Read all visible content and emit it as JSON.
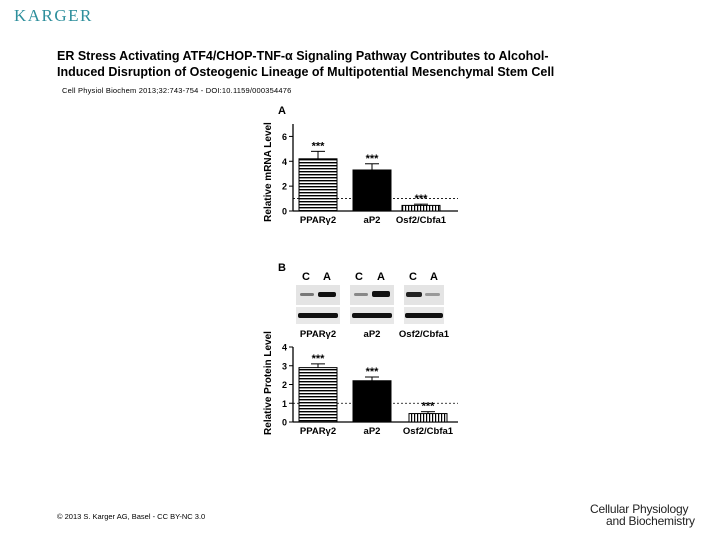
{
  "header": {
    "publisher_logo": "KARGER",
    "title_line1": "ER Stress Activating ATF4/CHOP-TNF-α Signaling Pathway Contributes to Alcohol-",
    "title_line2": "Induced Disruption of Osteogenic Lineage of Multipotential Mesenchymal Stem Cell",
    "citation": "Cell Physiol Biochem 2013;32:743-754 - DOI:10.1159/000354476"
  },
  "footer": {
    "copyright": "© 2013 S. Karger AG, Basel - CC BY-NC 3.0",
    "journal_line1": "Cellular Physiology",
    "journal_line2": "and Biochemistry"
  },
  "panel_a": {
    "letter": "A",
    "ylabel": "Relative mRNA Level",
    "sig": "***"
  },
  "panel_b": {
    "letter": "B",
    "ylabel": "Relative Protein Level",
    "sig": "***",
    "blot_labels": [
      "C",
      "A"
    ],
    "blot_names": [
      "PPARγ2",
      "aP2",
      "Osf2/Cbfa1"
    ]
  },
  "chart_data": [
    {
      "type": "bar",
      "panel": "A",
      "categories": [
        "PPARγ2",
        "aP2",
        "Osf2/Cbfa1"
      ],
      "values": [
        4.2,
        3.3,
        0.45
      ],
      "errors": [
        0.6,
        0.5,
        0.1
      ],
      "significance": [
        "***",
        "***",
        "***"
      ],
      "ylabel": "Relative mRNA Level",
      "ylim": [
        0,
        7
      ],
      "yticks": [
        0,
        2,
        4,
        6
      ],
      "reference_line": 1,
      "bar_fills": [
        "horizontal-stripes",
        "solid-black",
        "vertical-stripes"
      ]
    },
    {
      "type": "bar",
      "panel": "B",
      "categories": [
        "PPARγ2",
        "aP2",
        "Osf2/Cbfa1"
      ],
      "values": [
        2.9,
        2.2,
        0.45
      ],
      "errors": [
        0.2,
        0.2,
        0.1
      ],
      "significance": [
        "***",
        "***",
        "***"
      ],
      "ylabel": "Relative Protein Level",
      "ylim": [
        0,
        4
      ],
      "yticks": [
        0,
        1,
        2,
        3,
        4
      ],
      "reference_line": 1,
      "bar_fills": [
        "horizontal-stripes",
        "solid-black",
        "vertical-stripes"
      ]
    }
  ]
}
